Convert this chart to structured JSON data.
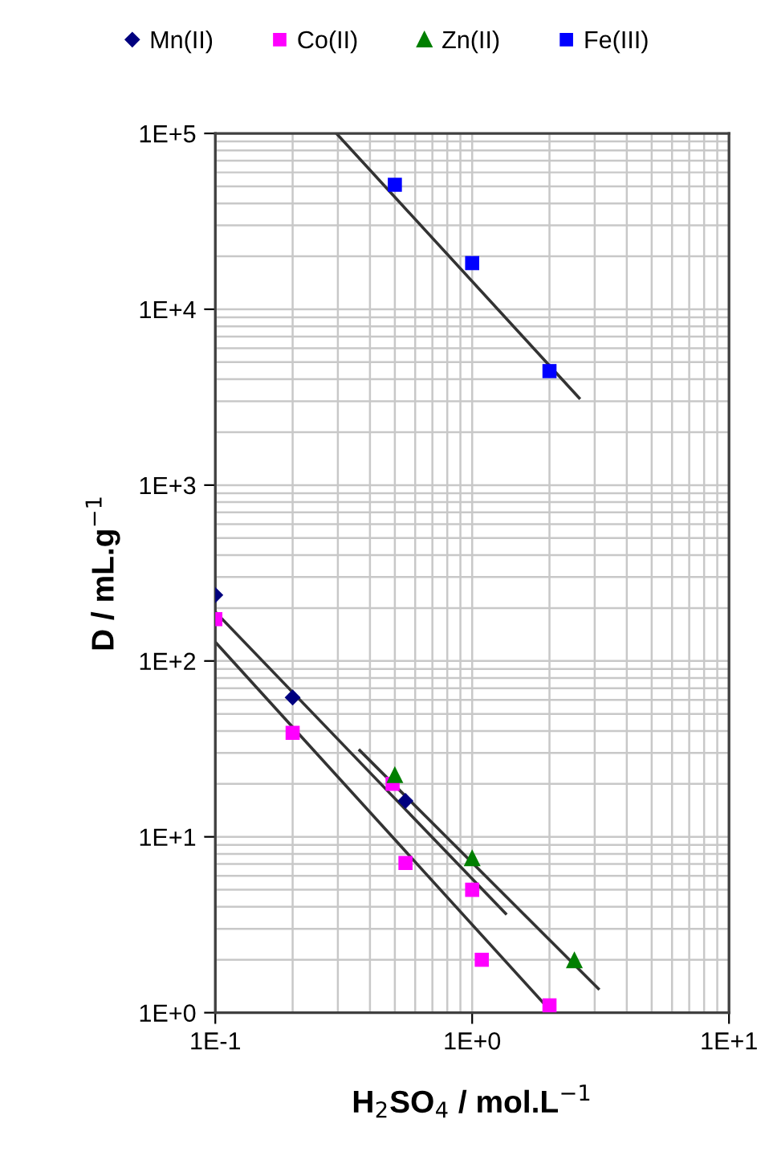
{
  "chart_data": {
    "type": "scatter",
    "xlabel": "H$_{2}$SO$_{4}$ / mol.L$^{−1}$",
    "ylabel": "D / mL.g$^{−1}$",
    "log": "xy",
    "xlim": [
      0.1,
      10
    ],
    "ylim": [
      1,
      100000
    ],
    "xticks": [
      {
        "value": 0.1,
        "label": "1E-1"
      },
      {
        "value": 1,
        "label": "1E+0"
      },
      {
        "value": 10,
        "label": "1E+1"
      }
    ],
    "yticks": [
      {
        "value": 1,
        "label": "1E+0"
      },
      {
        "value": 10,
        "label": "1E+1"
      },
      {
        "value": 100,
        "label": "1E+2"
      },
      {
        "value": 1000,
        "label": "1E+3"
      },
      {
        "value": 10000,
        "label": "1E+4"
      },
      {
        "value": 100000,
        "label": "1E+5"
      }
    ],
    "grid": true,
    "legend": "top",
    "series": [
      {
        "name": "Mn(II)",
        "color": "#00007f",
        "marker": "diamond",
        "x": [
          0.1,
          0.2,
          0.55
        ],
        "values": [
          237,
          62,
          16
        ]
      },
      {
        "name": "Co(II)",
        "color": "#ff00ff",
        "marker": "square",
        "x": [
          0.1,
          0.2,
          0.49,
          0.55,
          1.0,
          1.09,
          2.0
        ],
        "values": [
          173,
          39,
          20,
          7.1,
          5.0,
          2.0,
          1.1
        ]
      },
      {
        "name": "Zn(II)",
        "color": "#007f00",
        "marker": "triangle",
        "x": [
          0.5,
          1.0,
          2.5
        ],
        "values": [
          22.6,
          7.6,
          2.0
        ]
      },
      {
        "name": "Fe(III)",
        "color": "#0000ff",
        "marker": "square",
        "x": [
          0.5,
          1.0,
          2.0
        ],
        "values": [
          51000,
          18300,
          4450
        ]
      },
      {
        "type": "line",
        "color": "#333333",
        "marker": "none",
        "x": [
          0.296,
          2.61
        ],
        "values": [
          100000,
          3130
        ]
      },
      {
        "type": "line",
        "color": "#333333",
        "marker": "none",
        "x": [
          0.1,
          1.35
        ],
        "values": [
          190,
          3.66
        ]
      },
      {
        "type": "line",
        "color": "#333333",
        "marker": "none",
        "x": [
          0.1,
          2.05
        ],
        "values": [
          128,
          1.0
        ]
      },
      {
        "type": "line",
        "color": "#333333",
        "marker": "none",
        "x": [
          0.365,
          3.1
        ],
        "values": [
          31,
          1.37
        ]
      }
    ]
  }
}
